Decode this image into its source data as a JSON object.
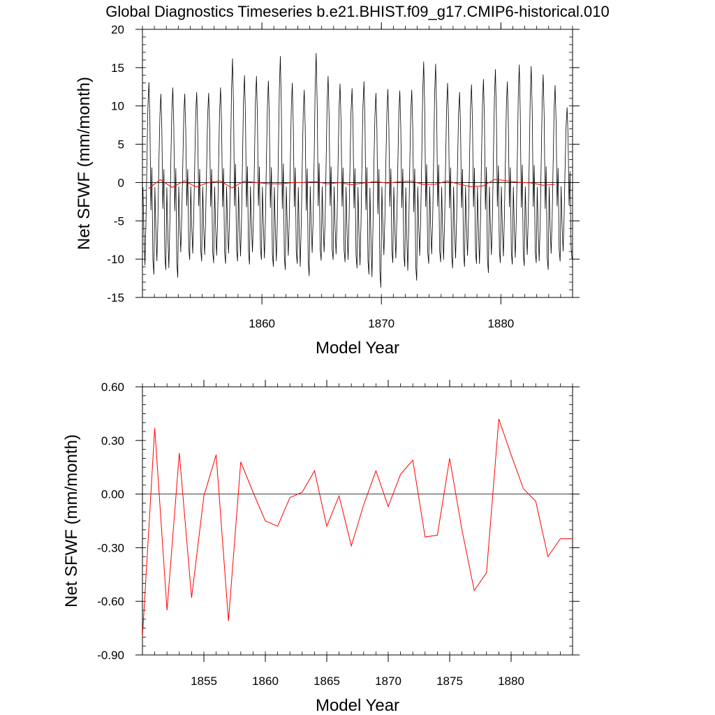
{
  "title": "Global Diagnostics Timeseries b.e21.BHIST.f09_g17.CMIP6-historical.010",
  "chart_data": [
    {
      "type": "line",
      "xlabel": "Model Year",
      "ylabel": "Net SFWF (mm/month)",
      "xlim": [
        1850,
        1886
      ],
      "ylim": [
        -15,
        20
      ],
      "x_ticks": [
        1860,
        1870,
        1880
      ],
      "y_ticks": [
        -15,
        -10,
        -5,
        0,
        5,
        10,
        15,
        20
      ],
      "y_tick_labels": [
        "-15",
        "-10",
        "-5",
        "0",
        "5",
        "10",
        "15",
        "20"
      ],
      "reference_line": 0,
      "series": [
        {
          "color": "#000000",
          "style": "monthly seasonal cycle",
          "annual_max": [
            13.1,
            11.6,
            12.4,
            11.6,
            11.8,
            11.7,
            12.4,
            16.2,
            14.0,
            13.9,
            13.3,
            16.5,
            13.0,
            12.1,
            16.9,
            13.9,
            12.9,
            12.3,
            13.2,
            11.7,
            12.2,
            12.0,
            12.1,
            15.8,
            15.5,
            13.0,
            11.8,
            12.8,
            13.5,
            14.8,
            13.2,
            15.4,
            15.2,
            14.1,
            12.7,
            9.8
          ],
          "annual_min": [
            -12.0,
            -11.4,
            -12.4,
            -10.1,
            -10.3,
            -10.5,
            -10.6,
            -10.3,
            -10.7,
            -10.1,
            -11.0,
            -11.4,
            -10.6,
            -12.2,
            -10.2,
            -10.1,
            -10.4,
            -11.2,
            -12.0,
            -13.7,
            -10.5,
            -11.0,
            -12.8,
            -10.6,
            -10.4,
            -11.2,
            -11.0,
            -10.6,
            -11.8,
            -10.5,
            -10.7,
            -10.9,
            -10.5,
            -11.4,
            -10.3,
            -10.0
          ]
        },
        {
          "color": "#ff0000",
          "style": "annual mean",
          "x": [
            1850.5,
            1851.5,
            1852.5,
            1853.5,
            1854.5,
            1855.5,
            1856.5,
            1857.5,
            1858.5,
            1859.5,
            1860.5,
            1861.5,
            1862.5,
            1863.5,
            1864.5,
            1865.5,
            1866.5,
            1867.5,
            1868.5,
            1869.5,
            1870.5,
            1871.5,
            1872.5,
            1873.5,
            1874.5,
            1875.5,
            1876.5,
            1877.5,
            1878.5,
            1879.5,
            1880.5,
            1881.5,
            1882.5,
            1883.5,
            1884.5
          ],
          "values": [
            -0.8,
            0.37,
            -0.65,
            0.23,
            -0.58,
            -0.01,
            0.22,
            -0.71,
            0.18,
            0.01,
            -0.15,
            -0.18,
            -0.02,
            0.01,
            0.13,
            -0.18,
            -0.01,
            -0.29,
            -0.06,
            0.13,
            -0.07,
            0.11,
            0.19,
            -0.24,
            -0.23,
            0.2,
            -0.2,
            -0.54,
            -0.44,
            0.42,
            0.22,
            0.03,
            -0.04,
            -0.35,
            -0.25
          ]
        }
      ]
    },
    {
      "type": "line",
      "xlabel": "Model Year",
      "ylabel": "Net SFWF (mm/month)",
      "xlim": [
        1850,
        1885
      ],
      "ylim": [
        -0.9,
        0.6
      ],
      "x_ticks": [
        1855,
        1860,
        1865,
        1870,
        1875,
        1880
      ],
      "y_ticks": [
        -0.9,
        -0.6,
        -0.3,
        0.0,
        0.3,
        0.6
      ],
      "y_tick_labels": [
        "-0.90",
        "-0.60",
        "-0.30",
        "0.00",
        "0.30",
        "0.60"
      ],
      "reference_line": 0,
      "series": [
        {
          "color": "#ff0000",
          "x": [
            1850,
            1851,
            1852,
            1853,
            1854,
            1855,
            1856,
            1857,
            1858,
            1859,
            1860,
            1861,
            1862,
            1863,
            1864,
            1865,
            1866,
            1867,
            1868,
            1869,
            1870,
            1871,
            1872,
            1873,
            1874,
            1875,
            1876,
            1877,
            1878,
            1879,
            1880,
            1881,
            1882,
            1883,
            1884,
            1885
          ],
          "values": [
            -0.8,
            0.37,
            -0.65,
            0.23,
            -0.58,
            -0.01,
            0.22,
            -0.71,
            0.18,
            0.01,
            -0.15,
            -0.18,
            -0.02,
            0.01,
            0.13,
            -0.18,
            -0.01,
            -0.29,
            -0.06,
            0.13,
            -0.07,
            0.11,
            0.19,
            -0.24,
            -0.23,
            0.2,
            -0.2,
            -0.54,
            -0.44,
            0.42,
            0.22,
            0.03,
            -0.04,
            -0.35,
            -0.25,
            -0.25
          ]
        }
      ]
    }
  ]
}
